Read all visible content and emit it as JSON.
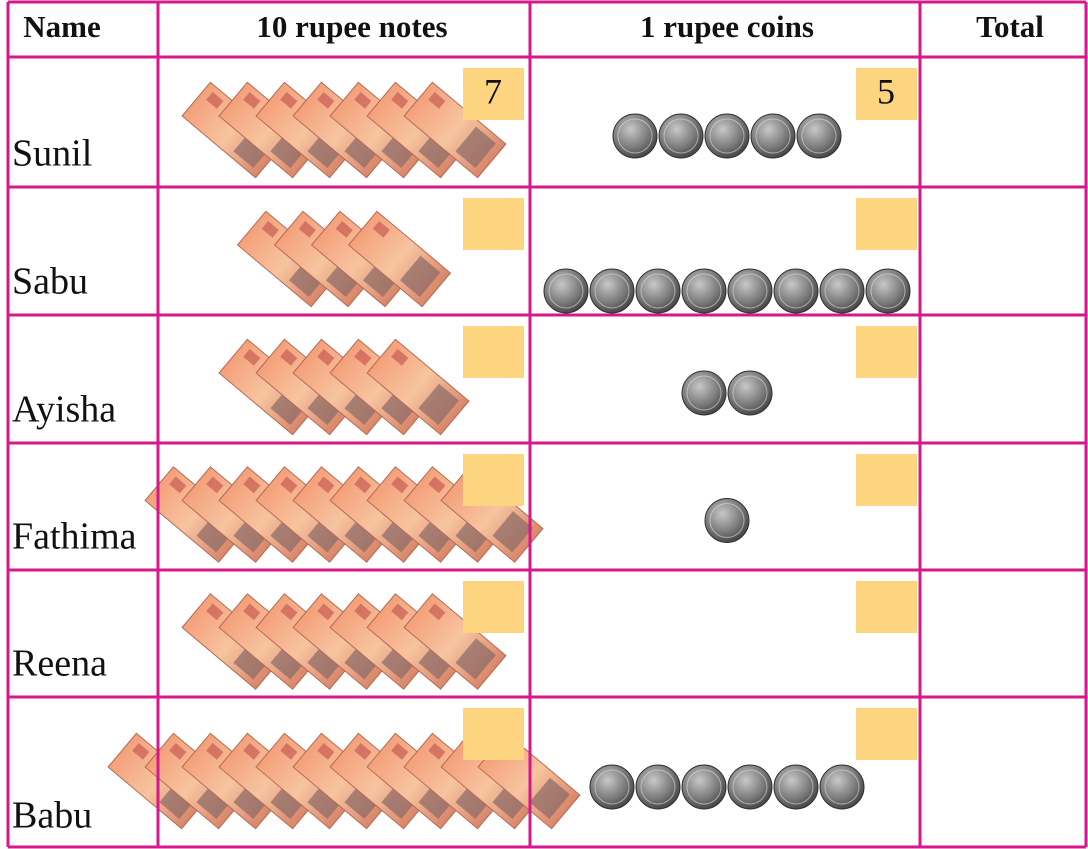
{
  "header": {
    "name": "Name",
    "notes": "10 rupee notes",
    "coins": "1 rupee coins",
    "total": "Total"
  },
  "rows": [
    {
      "name": "Sunil",
      "notes": 7,
      "coins": 5,
      "notes_written": "7",
      "coins_written": "5"
    },
    {
      "name": "Sabu",
      "notes": 4,
      "coins": 8
    },
    {
      "name": "Ayisha",
      "notes": 5,
      "coins": 2
    },
    {
      "name": "Fathima",
      "notes": 9,
      "coins": 1
    },
    {
      "name": "Reena",
      "notes": 7,
      "coins": 0
    },
    {
      "name": "Babu",
      "notes": 11,
      "coins": 6
    }
  ]
}
